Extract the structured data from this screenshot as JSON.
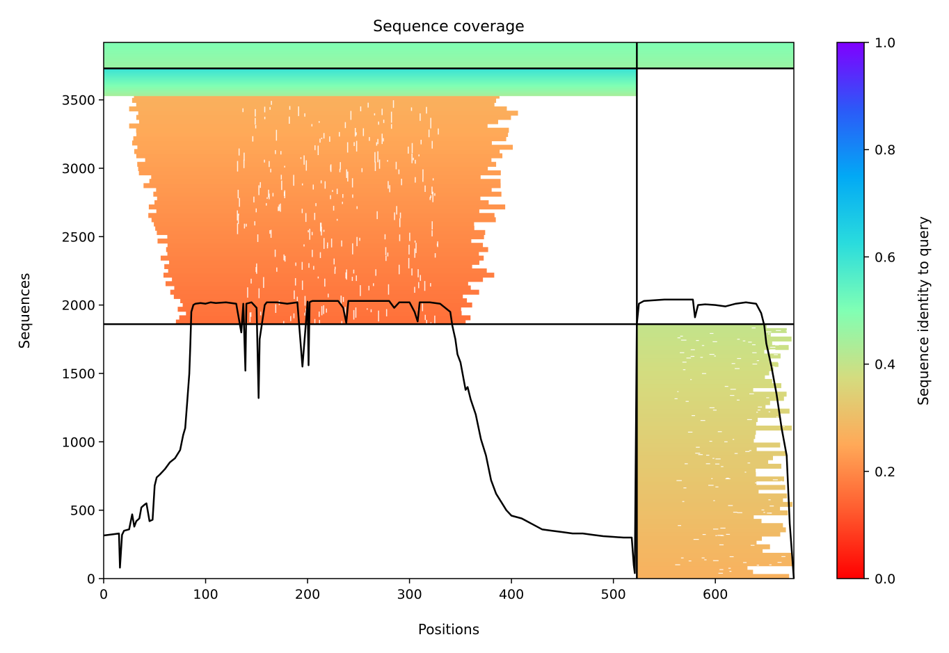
{
  "chart_data": {
    "type": "heatmap",
    "title": "Sequence coverage",
    "xlabel": "Positions",
    "ylabel": "Sequences",
    "xlim": [
      0,
      677
    ],
    "ylim": [
      0,
      3920
    ],
    "x_ticks": [
      0,
      100,
      200,
      300,
      400,
      500,
      600
    ],
    "y_ticks": [
      0,
      500,
      1000,
      1500,
      2000,
      2500,
      3000,
      3500
    ],
    "grid": false,
    "colorbar": {
      "label": "Sequence identity to query",
      "colormap": "rainbow_r",
      "range": [
        0,
        1
      ],
      "ticks": [
        "0.0",
        "0.2",
        "0.4",
        "0.6",
        "0.8",
        "1.0"
      ]
    },
    "separators": {
      "vertical_at_position": 523,
      "horizontal_at_sequence": [
        1860,
        3730
      ]
    },
    "alignment_blocks": [
      {
        "seq_start": 0,
        "seq_end": 1860,
        "pos_start": 523,
        "pos_end": 677,
        "identity_bottom": 0.27,
        "identity_top": 0.4
      },
      {
        "seq_start": 1860,
        "seq_end": 3730,
        "pos_start": 0,
        "pos_end": 523,
        "identity_bottom": 0.16,
        "identity_top": 0.28
      },
      {
        "seq_start": 3530,
        "seq_end": 3730,
        "pos_start": 0,
        "pos_end": 523,
        "identity_bottom": 0.44,
        "identity_top": 0.6
      },
      {
        "seq_start": 3730,
        "seq_end": 3920,
        "pos_start": 0,
        "pos_end": 677,
        "identity_bottom": 0.46,
        "identity_top": 0.5
      }
    ],
    "coverage_line": {
      "x": [
        0,
        10,
        15,
        16,
        18,
        20,
        25,
        28,
        30,
        32,
        35,
        37,
        40,
        42,
        45,
        48,
        50,
        52,
        55,
        60,
        65,
        70,
        75,
        78,
        80,
        82,
        84,
        85,
        86,
        88,
        90,
        95,
        100,
        105,
        110,
        120,
        130,
        135,
        137,
        139,
        140,
        145,
        150,
        152,
        153,
        155,
        158,
        160,
        170,
        180,
        190,
        195,
        200,
        201,
        202,
        203,
        205,
        210,
        220,
        230,
        235,
        238,
        240,
        250,
        260,
        270,
        280,
        285,
        290,
        300,
        305,
        308,
        310,
        320,
        330,
        340,
        342,
        345,
        347,
        350,
        355,
        357,
        360,
        365,
        370,
        375,
        380,
        385,
        390,
        395,
        400,
        410,
        420,
        430,
        440,
        450,
        460,
        470,
        480,
        490,
        500,
        510,
        518,
        520,
        521,
        523,
        525,
        530,
        540,
        550,
        560,
        570,
        578,
        580,
        583,
        590,
        600,
        610,
        620,
        630,
        640,
        645,
        648,
        650,
        655,
        660,
        665,
        670,
        673,
        677
      ],
      "y": [
        315,
        325,
        330,
        80,
        320,
        350,
        360,
        470,
        380,
        420,
        440,
        520,
        540,
        550,
        420,
        430,
        680,
        740,
        760,
        800,
        850,
        880,
        940,
        1050,
        1100,
        1300,
        1500,
        1700,
        1950,
        2000,
        2010,
        2015,
        2010,
        2020,
        2015,
        2020,
        2010,
        1800,
        2010,
        1520,
        2010,
        2020,
        1980,
        1320,
        1750,
        1850,
        2000,
        2020,
        2020,
        2010,
        2020,
        1550,
        2025,
        1560,
        2020,
        2025,
        2030,
        2030,
        2030,
        2030,
        1980,
        1870,
        2030,
        2030,
        2030,
        2030,
        2030,
        1980,
        2020,
        2020,
        1950,
        1880,
        2020,
        2020,
        2010,
        1950,
        1850,
        1750,
        1640,
        1580,
        1380,
        1400,
        1310,
        1200,
        1020,
        900,
        720,
        620,
        560,
        500,
        460,
        440,
        400,
        360,
        350,
        340,
        330,
        330,
        320,
        310,
        305,
        300,
        300,
        100,
        40,
        1860,
        2010,
        2030,
        2035,
        2040,
        2040,
        2040,
        2040,
        1910,
        2000,
        2005,
        2000,
        1990,
        2010,
        2020,
        2010,
        1940,
        1850,
        1720,
        1550,
        1350,
        1100,
        900,
        400,
        0
      ]
    }
  }
}
